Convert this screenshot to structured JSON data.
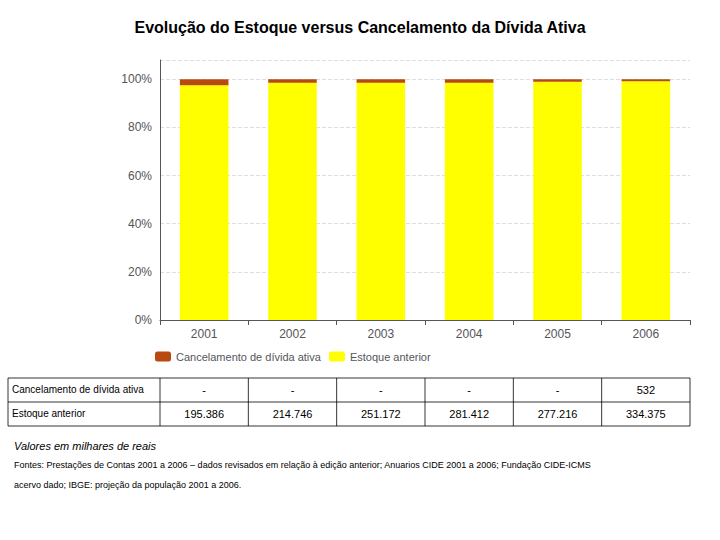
{
  "chart_data": {
    "type": "bar",
    "title": "Evolução do Estoque versus Cancelamento da Dívida Ativa",
    "categories": [
      "2001",
      "2002",
      "2003",
      "2004",
      "2005",
      "2006"
    ],
    "series": [
      {
        "name": "Estoque anterior",
        "color": "#FFFF00",
        "values": [
          97.5,
          98.5,
          98.5,
          98.5,
          99.0,
          99.2
        ]
      },
      {
        "name": "Cancelamento de dívida ativa",
        "color": "#B84A10",
        "values": [
          2.5,
          1.5,
          1.5,
          1.5,
          1.0,
          0.8
        ]
      }
    ],
    "stacked": true,
    "ylim": [
      0,
      108
    ],
    "yticks": [
      {
        "value": 0,
        "label": "0%"
      },
      {
        "value": 20,
        "label": "20%"
      },
      {
        "value": 40,
        "label": "40%"
      },
      {
        "value": 60,
        "label": "60%"
      },
      {
        "value": 80,
        "label": "80%"
      },
      {
        "value": 100,
        "label": "100%"
      }
    ],
    "grid": true,
    "legend": "lower left",
    "table": [
      {
        "label": "Cancelamento de dívida ativa",
        "cells": [
          "-",
          "-",
          "-",
          "-",
          "-",
          "532"
        ]
      },
      {
        "label": "Estoque anterior",
        "cells": [
          "195.386",
          "214.746",
          "251.172",
          "281.412",
          "277.216",
          "334.375"
        ]
      }
    ],
    "annotations": [
      "Valores em milhares de reais",
      "Fontes: Prestações de Contas 2001 a 2006 – dados revisados em relação à edição anterior; Anuarios CIDE 2001 a 2006; Fundação CIDE-ICMS",
      "acervo dado; IBGE: projeção da população 2001 a 2006."
    ]
  }
}
